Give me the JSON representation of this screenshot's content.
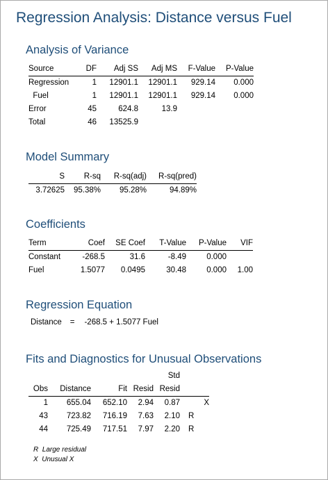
{
  "title": "Regression Analysis: Distance versus Fuel",
  "anova": {
    "heading": "Analysis of Variance",
    "columns": [
      "Source",
      "DF",
      "Adj SS",
      "Adj MS",
      "F-Value",
      "P-Value"
    ],
    "rows": [
      [
        "Regression",
        "1",
        "12901.1",
        "12901.1",
        "929.14",
        "0.000"
      ],
      [
        "  Fuel",
        "1",
        "12901.1",
        "12901.1",
        "929.14",
        "0.000"
      ],
      [
        "Error",
        "45",
        "624.8",
        "13.9",
        "",
        ""
      ],
      [
        "Total",
        "46",
        "13525.9",
        "",
        "",
        ""
      ]
    ]
  },
  "model_summary": {
    "heading": "Model Summary",
    "columns": [
      "S",
      "R-sq",
      "R-sq(adj)",
      "R-sq(pred)"
    ],
    "rows": [
      [
        "3.72625",
        "95.38%",
        "95.28%",
        "94.89%"
      ]
    ]
  },
  "coefficients": {
    "heading": "Coefficients",
    "columns": [
      "Term",
      "Coef",
      "SE Coef",
      "T-Value",
      "P-Value",
      "VIF"
    ],
    "rows": [
      [
        "Constant",
        "-268.5",
        "31.6",
        "-8.49",
        "0.000",
        ""
      ],
      [
        "Fuel",
        "1.5077",
        "0.0495",
        "30.48",
        "0.000",
        "1.00"
      ]
    ]
  },
  "equation": {
    "heading": "Regression Equation",
    "response": "Distance",
    "equals": "=",
    "expression": "-268.5 + 1.5077 Fuel"
  },
  "fits": {
    "heading": "Fits and Diagnostics for Unusual Observations",
    "header_top": [
      "",
      "",
      "",
      "",
      "Std",
      ""
    ],
    "columns": [
      "Obs",
      "Distance",
      "Fit",
      "Resid",
      "Resid",
      ""
    ],
    "rows": [
      [
        "1",
        "655.04",
        "652.10",
        "2.94",
        "0.87",
        "X"
      ],
      [
        "43",
        "723.82",
        "716.19",
        "7.63",
        "2.10",
        "R"
      ],
      [
        "44",
        "725.49",
        "717.51",
        "7.97",
        "2.20",
        "R"
      ]
    ],
    "notes": [
      "R  Large residual",
      "X  Unusual X"
    ]
  }
}
